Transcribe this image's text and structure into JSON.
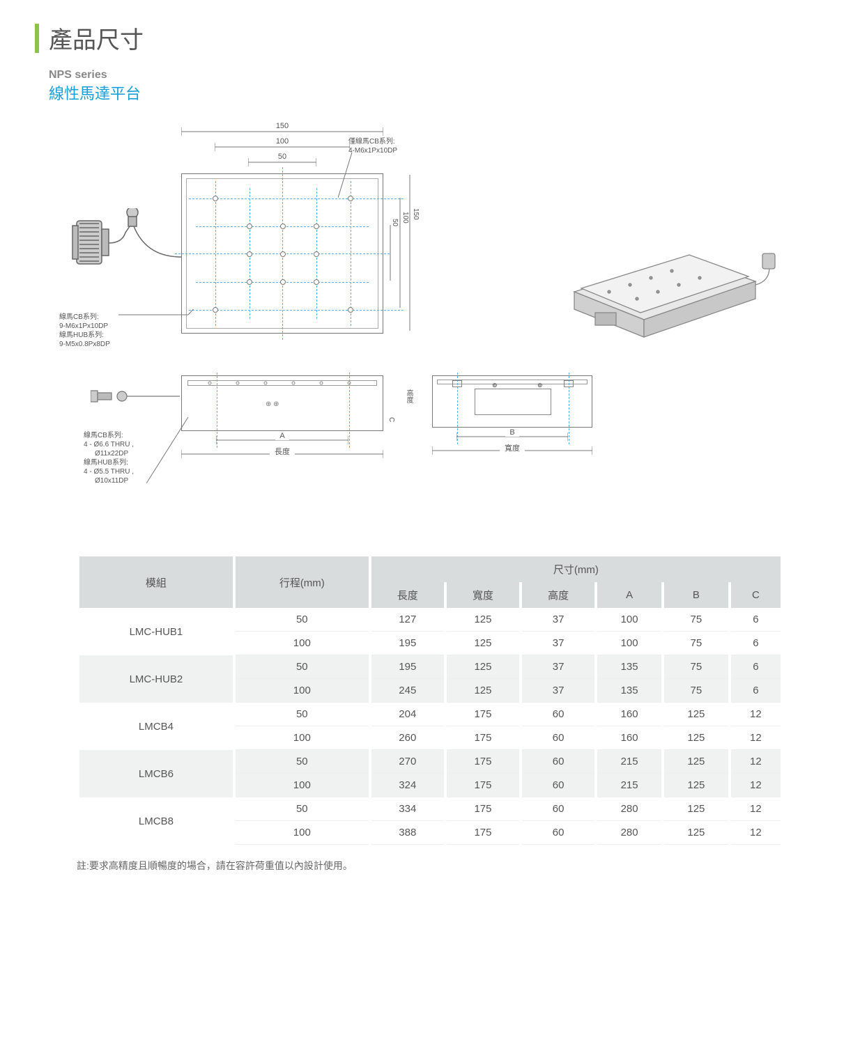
{
  "page": {
    "title": "產品尺寸",
    "series_label": "NPS series",
    "series_name": "線性馬達平台"
  },
  "diagram": {
    "top_dims": {
      "d1": "150",
      "d2": "100",
      "d3": "50"
    },
    "side_dims": {
      "d1": "50",
      "d2": "100",
      "d3": "150"
    },
    "callout_top_right": {
      "line1": "僅線馬CB系列:",
      "line2": "4-M6x1Px10DP"
    },
    "callout_left": {
      "line1": "線馬CB系列:",
      "line2": "9-M6x1Px10DP",
      "line3": "線馬HUB系列:",
      "line4": "9-M5x0.8Px8DP"
    },
    "callout_bottom_left": {
      "line1": "線馬CB系列:",
      "line2": "4 - Ø6.6 THRU ,",
      "line3": "Ø11x22DP",
      "line4": "線馬HUB系列:",
      "line5": "4 - Ø5.5 THRU ,",
      "line6": "Ø10x11DP"
    },
    "front": {
      "label_a": "A",
      "label_length": "長度",
      "label_c": "C",
      "label_height": "高度"
    },
    "side": {
      "label_b": "B",
      "label_width": "寬度"
    }
  },
  "table": {
    "headers": {
      "model": "模組",
      "stroke": "行程(mm)",
      "dimensions": "尺寸(mm)",
      "length": "長度",
      "width": "寬度",
      "height": "高度",
      "a": "A",
      "b": "B",
      "c": "C"
    },
    "groups": [
      {
        "model": "LMC-HUB1",
        "rows": [
          {
            "stroke": "50",
            "length": "127",
            "width": "125",
            "height": "37",
            "a": "100",
            "b": "75",
            "c": "6"
          },
          {
            "stroke": "100",
            "length": "195",
            "width": "125",
            "height": "37",
            "a": "100",
            "b": "75",
            "c": "6"
          }
        ]
      },
      {
        "model": "LMC-HUB2",
        "rows": [
          {
            "stroke": "50",
            "length": "195",
            "width": "125",
            "height": "37",
            "a": "135",
            "b": "75",
            "c": "6"
          },
          {
            "stroke": "100",
            "length": "245",
            "width": "125",
            "height": "37",
            "a": "135",
            "b": "75",
            "c": "6"
          }
        ]
      },
      {
        "model": "LMCB4",
        "rows": [
          {
            "stroke": "50",
            "length": "204",
            "width": "175",
            "height": "60",
            "a": "160",
            "b": "125",
            "c": "12"
          },
          {
            "stroke": "100",
            "length": "260",
            "width": "175",
            "height": "60",
            "a": "160",
            "b": "125",
            "c": "12"
          }
        ]
      },
      {
        "model": "LMCB6",
        "rows": [
          {
            "stroke": "50",
            "length": "270",
            "width": "175",
            "height": "60",
            "a": "215",
            "b": "125",
            "c": "12"
          },
          {
            "stroke": "100",
            "length": "324",
            "width": "175",
            "height": "60",
            "a": "215",
            "b": "125",
            "c": "12"
          }
        ]
      },
      {
        "model": "LMCB8",
        "rows": [
          {
            "stroke": "50",
            "length": "334",
            "width": "175",
            "height": "60",
            "a": "280",
            "b": "125",
            "c": "12"
          },
          {
            "stroke": "100",
            "length": "388",
            "width": "175",
            "height": "60",
            "a": "280",
            "b": "125",
            "c": "12"
          }
        ]
      }
    ]
  },
  "footnote": "註:要求高精度且順暢度的場合，請在容許荷重值以內設計使用。",
  "colors": {
    "accent_green": "#8bc34a",
    "series_blue": "#1a9ed8",
    "dashed_blue": "#5bb0e8",
    "header_bg": "#d8dcdc",
    "alt_row_bg": "#f0f2f2",
    "text_gray": "#555555"
  }
}
